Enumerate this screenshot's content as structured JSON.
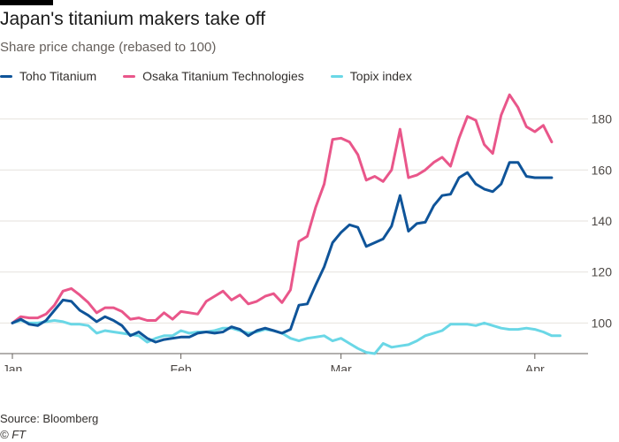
{
  "chart_data": {
    "type": "line",
    "title": "Japan's titanium makers take off",
    "subtitle": "Share price change (rebased to 100)",
    "xlabel": "",
    "ylabel": "",
    "ylim": [
      88,
      192
    ],
    "y_ticks": [
      100,
      120,
      140,
      160,
      180
    ],
    "x_ticks": [
      "Jan",
      "Feb",
      "Mar",
      "Apr"
    ],
    "x_tick_index": [
      0,
      20,
      39,
      62
    ],
    "n_points": 69,
    "grid": true,
    "legend_position": "top",
    "series": [
      {
        "name": "Toho Titanium",
        "color": "#0f5499",
        "values": [
          100,
          101.5,
          99.5,
          99,
          101,
          105,
          109,
          108.5,
          105,
          103,
          100.5,
          102.5,
          101,
          99,
          95,
          96.5,
          94,
          92.5,
          93.5,
          94,
          94.5,
          94.5,
          96,
          96.5,
          96,
          96.5,
          98.5,
          97.5,
          95,
          97,
          98,
          97,
          96,
          97.5,
          107,
          107.5,
          115,
          122,
          131.5,
          135.5,
          138.5,
          137.5,
          130,
          131.5,
          133,
          138,
          150,
          136,
          139,
          139.5,
          146,
          150,
          150.5,
          157,
          159,
          154.5,
          152.5,
          151.5,
          154.5,
          163,
          163,
          157.5,
          157,
          157,
          157
        ]
      },
      {
        "name": "Osaka Titanium Technologies",
        "color": "#e9568a",
        "values": [
          100,
          102.5,
          102,
          102,
          103.5,
          107,
          112.5,
          113.5,
          111,
          108,
          104,
          106,
          106,
          104.5,
          101.5,
          102,
          101,
          101,
          104,
          101.5,
          104.5,
          104,
          103.5,
          108.5,
          110.5,
          112.5,
          109,
          111,
          107.5,
          108.5,
          110.5,
          111.5,
          108,
          113,
          132,
          134,
          145.5,
          154.5,
          172,
          172.5,
          171,
          166,
          156,
          157.5,
          155.5,
          160,
          176,
          157,
          158,
          160,
          163,
          165,
          161.5,
          172.5,
          181,
          179.5,
          170,
          166.5,
          181.5,
          189.5,
          184.5,
          177,
          175,
          177.5,
          171
        ]
      },
      {
        "name": "Topix index",
        "color": "#6ad7e6",
        "values": [
          100,
          101,
          100,
          100,
          100.5,
          101,
          100.5,
          99.5,
          99.5,
          99,
          96,
          97,
          96.5,
          96,
          95.5,
          95,
          92.5,
          94,
          95,
          95,
          97,
          96,
          96.5,
          96.5,
          97,
          98,
          98,
          97,
          96,
          96.5,
          97.5,
          97,
          96,
          94,
          93,
          94,
          94.5,
          95,
          93,
          94,
          92,
          90,
          88.5,
          88,
          92,
          90.5,
          91,
          91.5,
          93,
          95,
          96,
          97,
          99.5,
          99.5,
          99.5,
          99,
          100,
          99,
          98,
          97.5,
          97.5,
          98,
          97.5,
          96.5,
          95,
          95
        ]
      }
    ]
  },
  "source": "Source: Bloomberg",
  "credit": "© FT"
}
